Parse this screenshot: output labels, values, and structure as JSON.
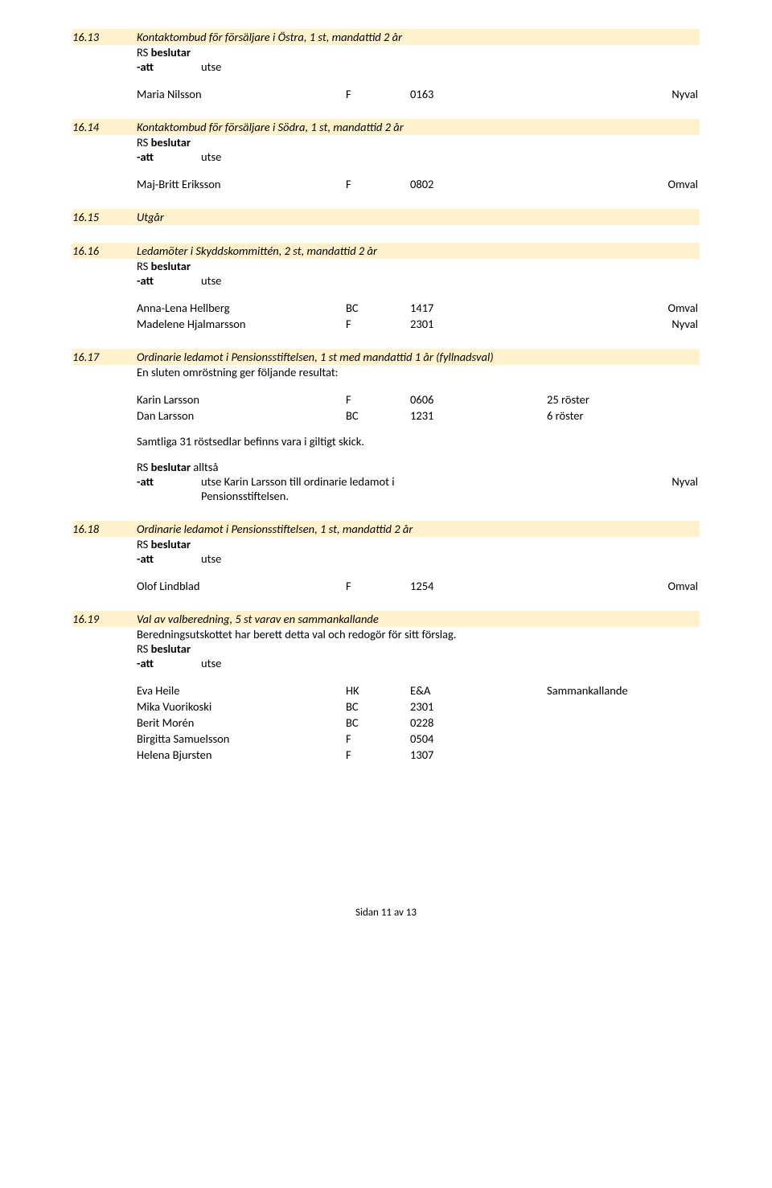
{
  "colors": {
    "highlight": "#fff2cc",
    "text": "#000000",
    "bg": "#ffffff"
  },
  "typography": {
    "body_fontsize": 14.5,
    "footer_fontsize": 13,
    "font_family": "Calibri"
  },
  "layout": {
    "page_padding": "28 90 40 90",
    "col_widths": {
      "sec_num": 80,
      "indent": 80,
      "name": 260,
      "code": 80,
      "num": 170,
      "extra": 170
    }
  },
  "labels": {
    "rs_beslutar": "RS beslutar",
    "rs_beslutar_alltsa": "RS beslutar alltså",
    "att": "-att",
    "utse": "utse"
  },
  "sections": [
    {
      "num": "16.13",
      "title": "Kontaktombud för försäljare i Östra, 1 st, mandattid 2 år",
      "rows": [
        {
          "name": "Maria Nilsson",
          "code": "F",
          "num": "0163",
          "result": "Nyval"
        }
      ]
    },
    {
      "num": "16.14",
      "title": "Kontaktombud för försäljare i Södra, 1 st, mandattid 2 år",
      "rows": [
        {
          "name": "Maj-Britt Eriksson",
          "code": "F",
          "num": "0802",
          "result": "Omval"
        }
      ]
    },
    {
      "num": "16.15",
      "title": "Utgår",
      "bare": true
    },
    {
      "num": "16.16",
      "title": "Ledamöter i Skyddskommittén, 2 st, mandattid 2 år",
      "rows": [
        {
          "name": "Anna-Lena Hellberg",
          "code": "BC",
          "num": "1417",
          "result": "Omval"
        },
        {
          "name": "Madelene Hjalmarsson",
          "code": "F",
          "num": "2301",
          "result": "Nyval"
        }
      ]
    },
    {
      "num": "16.17",
      "title": "Ordinarie ledamot i Pensionsstiftelsen, 1 st med mandattid 1 år (fyllnadsval)",
      "note": "En sluten omröstning ger följande resultat:",
      "vote_rows": [
        {
          "name": "Karin Larsson",
          "code": "F",
          "num": "0606",
          "extra": "25 röster"
        },
        {
          "name": "Dan Larsson",
          "code": "BC",
          "num": "1231",
          "extra": "6 röster"
        }
      ],
      "post_note": "Samtliga 31 röstsedlar befinns vara i giltigt skick.",
      "decision_text": "utse Karin Larsson till ordinarie ledamot i Pensionsstiftelsen.",
      "decision_result": "Nyval"
    },
    {
      "num": "16.18",
      "title": "Ordinarie ledamot i Pensionsstiftelsen, 1 st, mandattid 2 år",
      "rows": [
        {
          "name": "Olof Lindblad",
          "code": "F",
          "num": "1254",
          "result": "Omval"
        }
      ]
    },
    {
      "num": "16.19",
      "title": "Val av valberedning, 5 st varav en sammankallande",
      "note": "Beredningsutskottet har berett detta val och redogör för sitt förslag.",
      "rows_plain": [
        {
          "name": "Eva Heile",
          "code": "HK",
          "num": "E&A",
          "extra": "Sammankallande"
        },
        {
          "name": "Mika Vuorikoski",
          "code": "BC",
          "num": "2301",
          "extra": ""
        },
        {
          "name": "Berit Morén",
          "code": "BC",
          "num": "0228",
          "extra": ""
        },
        {
          "name": "Birgitta Samuelsson",
          "code": "F",
          "num": "0504",
          "extra": ""
        },
        {
          "name": "Helena Bjursten",
          "code": "F",
          "num": "1307",
          "extra": ""
        }
      ]
    }
  ],
  "footer": "Sidan 11 av 13"
}
